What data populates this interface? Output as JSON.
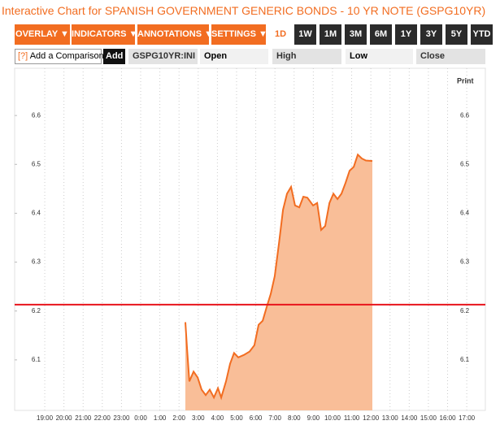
{
  "toolbar": {
    "menus": [
      "OVERLAY ▼",
      "INDICATORS ▼",
      "ANNOTATIONS ▼",
      "SETTINGS ▼"
    ],
    "ranges": [
      "1D",
      "1W",
      "1M",
      "3M",
      "6M",
      "1Y",
      "3Y",
      "5Y",
      "YTD"
    ],
    "help": "[?]",
    "comparison": "Add a Comparison",
    "add": "Add",
    "symbol": "GSPG10YR:INI",
    "fields": [
      "Open",
      "High",
      "Low",
      "Close"
    ],
    "print": "Print"
  },
  "chart_data": {
    "type": "area",
    "title": "Interactive Chart for SPANISH GOVERNMENT GENERIC BONDS - 10 YR NOTE (GSPG10YR)",
    "series": [
      {
        "name": "GSPG10YR:INI",
        "color": "#f26d21",
        "fill": "#f9be98",
        "x": [
          2.33,
          2.42,
          2.54,
          2.76,
          2.97,
          3.18,
          3.39,
          3.6,
          3.82,
          4.03,
          4.2,
          4.45,
          4.66,
          4.87,
          5.09,
          5.38,
          5.68,
          5.93,
          6.15,
          6.36,
          6.57,
          6.78,
          6.99,
          7.21,
          7.42,
          7.63,
          7.84,
          8.05,
          8.27,
          8.48,
          8.69,
          8.99,
          9.2,
          9.41,
          9.62,
          9.84,
          10.05,
          10.26,
          10.47,
          10.68,
          10.89,
          11.11,
          11.32,
          11.53,
          11.74,
          12.08
        ],
        "values": [
          6.177,
          6.122,
          6.056,
          6.076,
          6.064,
          6.039,
          6.028,
          6.039,
          6.023,
          6.042,
          6.023,
          6.056,
          6.092,
          6.114,
          6.105,
          6.11,
          6.117,
          6.13,
          6.172,
          6.18,
          6.208,
          6.235,
          6.271,
          6.338,
          6.407,
          6.44,
          6.454,
          6.416,
          6.412,
          6.434,
          6.432,
          6.416,
          6.421,
          6.366,
          6.374,
          6.421,
          6.44,
          6.429,
          6.44,
          6.462,
          6.487,
          6.495,
          6.52,
          6.512,
          6.508,
          6.507
        ]
      }
    ],
    "reference_line": {
      "value": 6.213,
      "color": "#e8141c"
    },
    "xlim": [
      -6.57,
      17.97
    ],
    "ylim": [
      6.0,
      6.7
    ],
    "xticks": [
      {
        "value": -5,
        "label": "19:00"
      },
      {
        "value": -4,
        "label": "20:00"
      },
      {
        "value": -3,
        "label": "21:00"
      },
      {
        "value": -2,
        "label": "22:00"
      },
      {
        "value": -1,
        "label": "23:00"
      },
      {
        "value": 0,
        "label": "0:00"
      },
      {
        "value": 1,
        "label": "1:00"
      },
      {
        "value": 2,
        "label": "2:00"
      },
      {
        "value": 3,
        "label": "3:00"
      },
      {
        "value": 4,
        "label": "4:00"
      },
      {
        "value": 5,
        "label": "5:00"
      },
      {
        "value": 6,
        "label": "6:00"
      },
      {
        "value": 7,
        "label": "7:00"
      },
      {
        "value": 8,
        "label": "8:00"
      },
      {
        "value": 9,
        "label": "9:00"
      },
      {
        "value": 10,
        "label": "10:00"
      },
      {
        "value": 11,
        "label": "11:00"
      },
      {
        "value": 12,
        "label": "12:00"
      },
      {
        "value": 13,
        "label": "13:00"
      },
      {
        "value": 14,
        "label": "14:00"
      },
      {
        "value": 15,
        "label": "15:00"
      },
      {
        "value": 16,
        "label": "16:00"
      },
      {
        "value": 17,
        "label": "17:00"
      }
    ],
    "yticks": [
      6.1,
      6.2,
      6.3,
      6.4,
      6.5,
      6.6
    ],
    "grid": "x"
  }
}
